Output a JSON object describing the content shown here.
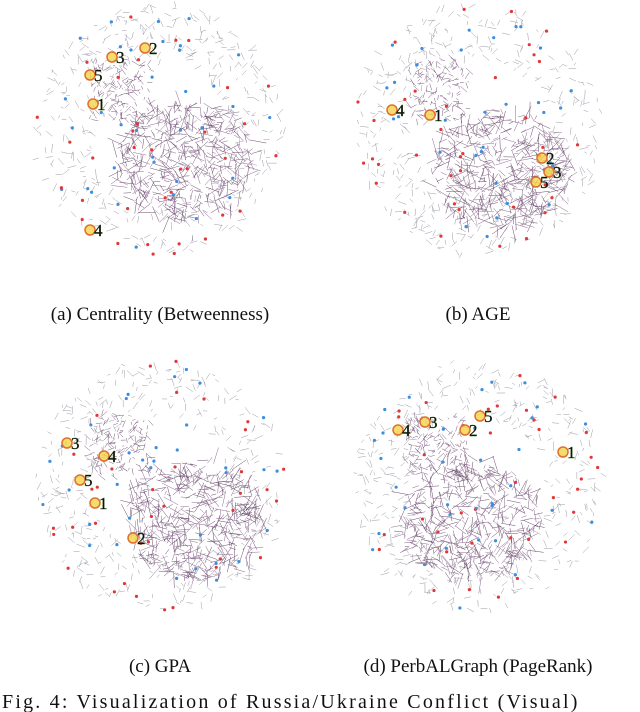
{
  "panels": [
    {
      "caption": "(a) Centrality (Betweenness)",
      "markers": [
        "1",
        "2",
        "3",
        "4",
        "5"
      ]
    },
    {
      "caption": "(b) AGE",
      "markers": [
        "1",
        "2",
        "3",
        "4",
        "5"
      ]
    },
    {
      "caption": "(c) GPA",
      "markers": [
        "1",
        "2",
        "3",
        "4",
        "5"
      ]
    },
    {
      "caption": "(d) PerbALGraph (PageRank)",
      "markers": [
        "1",
        "2",
        "3",
        "4",
        "5"
      ]
    }
  ],
  "figure_caption": "Fig. 4: Visualization of Russia/Ukraine Conflict (Visual)"
}
